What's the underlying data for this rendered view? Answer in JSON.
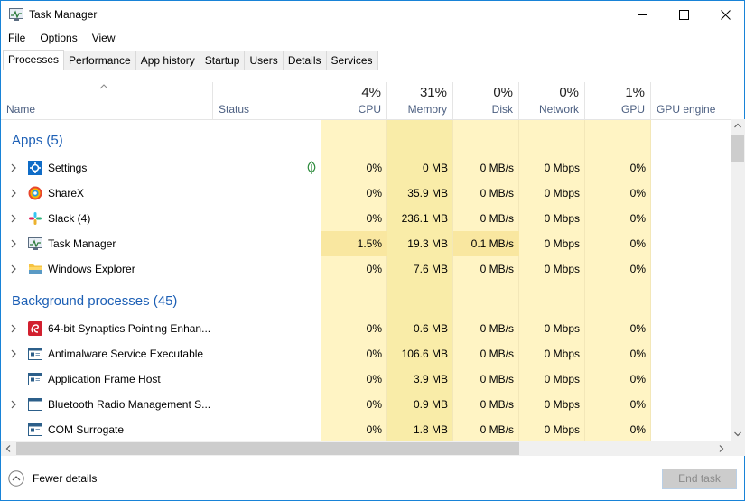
{
  "window": {
    "title": "Task Manager"
  },
  "menu": [
    "File",
    "Options",
    "View"
  ],
  "tabs": [
    "Processes",
    "Performance",
    "App history",
    "Startup",
    "Users",
    "Details",
    "Services"
  ],
  "header": {
    "name": "Name",
    "status": "Status",
    "cpu": {
      "pct": "4%",
      "label": "CPU"
    },
    "memory": {
      "pct": "31%",
      "label": "Memory"
    },
    "disk": {
      "pct": "0%",
      "label": "Disk"
    },
    "network": {
      "pct": "0%",
      "label": "Network"
    },
    "gpu": {
      "pct": "1%",
      "label": "GPU"
    },
    "gpu_engine": "GPU engine"
  },
  "groups": {
    "apps": "Apps (5)",
    "background": "Background processes (45)"
  },
  "apps": [
    {
      "name": "Settings",
      "cpu": "0%",
      "memory": "0 MB",
      "disk": "0 MB/s",
      "network": "0 Mbps",
      "gpu": "0%",
      "icon": "settings-gear"
    },
    {
      "name": "ShareX",
      "cpu": "0%",
      "memory": "35.9 MB",
      "disk": "0 MB/s",
      "network": "0 Mbps",
      "gpu": "0%",
      "icon": "sharex"
    },
    {
      "name": "Slack (4)",
      "cpu": "0%",
      "memory": "236.1 MB",
      "disk": "0 MB/s",
      "network": "0 Mbps",
      "gpu": "0%",
      "icon": "slack"
    },
    {
      "name": "Task Manager",
      "cpu": "1.5%",
      "memory": "19.3 MB",
      "disk": "0.1 MB/s",
      "network": "0 Mbps",
      "gpu": "0%",
      "icon": "task-manager"
    },
    {
      "name": "Windows Explorer",
      "cpu": "0%",
      "memory": "7.6 MB",
      "disk": "0 MB/s",
      "network": "0 Mbps",
      "gpu": "0%",
      "icon": "folder"
    }
  ],
  "background": [
    {
      "name": "64-bit Synaptics Pointing Enhan...",
      "cpu": "0%",
      "memory": "0.6 MB",
      "disk": "0 MB/s",
      "network": "0 Mbps",
      "gpu": "0%",
      "icon": "synaptics"
    },
    {
      "name": "Antimalware Service Executable",
      "cpu": "0%",
      "memory": "106.6 MB",
      "disk": "0 MB/s",
      "network": "0 Mbps",
      "gpu": "0%",
      "icon": "service-window"
    },
    {
      "name": "Application Frame Host",
      "cpu": "0%",
      "memory": "3.9 MB",
      "disk": "0 MB/s",
      "network": "0 Mbps",
      "gpu": "0%",
      "icon": "service-window"
    },
    {
      "name": "Bluetooth Radio Management S...",
      "cpu": "0%",
      "memory": "0.9 MB",
      "disk": "0 MB/s",
      "network": "0 Mbps",
      "gpu": "0%",
      "icon": "window"
    },
    {
      "name": "COM Surrogate",
      "cpu": "0%",
      "memory": "1.8 MB",
      "disk": "0 MB/s",
      "network": "0 Mbps",
      "gpu": "0%",
      "icon": "service-window"
    }
  ],
  "footer": {
    "fewer_details": "Fewer details",
    "end_task": "End task"
  },
  "colors": {
    "heat_light": "#fff4c4",
    "heat_mid": "#f9eca8",
    "group_text": "#1c5fb5",
    "accent_border": "#1883d7"
  }
}
